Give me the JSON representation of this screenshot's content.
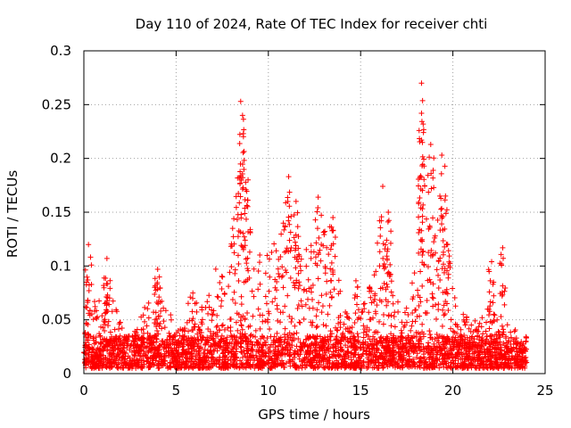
{
  "chart_data": {
    "type": "scatter",
    "title": "Day 110 of 2024, Rate Of TEC Index for receiver chti",
    "xlabel": "GPS time / hours",
    "ylabel": "ROTI / TECUs",
    "xlim": [
      0,
      25
    ],
    "ylim": [
      0,
      0.3
    ],
    "x_ticks": [
      0,
      5,
      10,
      15,
      20,
      25
    ],
    "y_ticks": [
      0,
      0.05,
      0.1,
      0.15,
      0.2,
      0.25,
      0.3
    ],
    "x_tick_labels": [
      "0",
      "5",
      "10",
      "15",
      "20",
      "25"
    ],
    "y_tick_labels": [
      "0",
      "0.05",
      "0.1",
      "0.15",
      "0.2",
      "0.25",
      "0.3"
    ],
    "grid": true,
    "marker": "+",
    "series_color": "#ff0000",
    "notable_peaks": [
      {
        "x": 0.25,
        "y": 0.12
      },
      {
        "x": 1.25,
        "y": 0.107
      },
      {
        "x": 4.0,
        "y": 0.097
      },
      {
        "x": 8.5,
        "y": 0.253
      },
      {
        "x": 8.6,
        "y": 0.24
      },
      {
        "x": 8.9,
        "y": 0.18
      },
      {
        "x": 11.1,
        "y": 0.183
      },
      {
        "x": 11.5,
        "y": 0.16
      },
      {
        "x": 12.7,
        "y": 0.164
      },
      {
        "x": 13.5,
        "y": 0.145
      },
      {
        "x": 16.2,
        "y": 0.174
      },
      {
        "x": 16.5,
        "y": 0.15
      },
      {
        "x": 18.3,
        "y": 0.27
      },
      {
        "x": 18.3,
        "y": 0.242
      },
      {
        "x": 18.3,
        "y": 0.217
      },
      {
        "x": 18.8,
        "y": 0.213
      },
      {
        "x": 19.4,
        "y": 0.203
      },
      {
        "x": 19.6,
        "y": 0.165
      },
      {
        "x": 22.1,
        "y": 0.104
      },
      {
        "x": 22.7,
        "y": 0.117
      }
    ],
    "activity_envelope": [
      {
        "x": 0,
        "y": 0.04
      },
      {
        "x": 0.3,
        "y": 0.09
      },
      {
        "x": 0.7,
        "y": 0.06
      },
      {
        "x": 1.2,
        "y": 0.09
      },
      {
        "x": 1.8,
        "y": 0.06
      },
      {
        "x": 2.4,
        "y": 0.03
      },
      {
        "x": 3.0,
        "y": 0.05
      },
      {
        "x": 3.5,
        "y": 0.07
      },
      {
        "x": 4.0,
        "y": 0.09
      },
      {
        "x": 4.6,
        "y": 0.06
      },
      {
        "x": 5.2,
        "y": 0.04
      },
      {
        "x": 5.8,
        "y": 0.08
      },
      {
        "x": 6.5,
        "y": 0.06
      },
      {
        "x": 7.2,
        "y": 0.1
      },
      {
        "x": 7.8,
        "y": 0.1
      },
      {
        "x": 8.5,
        "y": 0.2
      },
      {
        "x": 9.0,
        "y": 0.15
      },
      {
        "x": 9.5,
        "y": 0.11
      },
      {
        "x": 10.2,
        "y": 0.12
      },
      {
        "x": 11.0,
        "y": 0.16
      },
      {
        "x": 11.6,
        "y": 0.13
      },
      {
        "x": 12.2,
        "y": 0.12
      },
      {
        "x": 12.8,
        "y": 0.14
      },
      {
        "x": 13.5,
        "y": 0.12
      },
      {
        "x": 14.2,
        "y": 0.06
      },
      {
        "x": 14.8,
        "y": 0.09
      },
      {
        "x": 15.4,
        "y": 0.08
      },
      {
        "x": 16.2,
        "y": 0.15
      },
      {
        "x": 16.8,
        "y": 0.08
      },
      {
        "x": 17.4,
        "y": 0.06
      },
      {
        "x": 18.2,
        "y": 0.12
      },
      {
        "x": 18.8,
        "y": 0.17
      },
      {
        "x": 19.5,
        "y": 0.15
      },
      {
        "x": 20.2,
        "y": 0.06
      },
      {
        "x": 21.0,
        "y": 0.05
      },
      {
        "x": 21.8,
        "y": 0.06
      },
      {
        "x": 22.3,
        "y": 0.07
      },
      {
        "x": 22.8,
        "y": 0.05
      },
      {
        "x": 23.5,
        "y": 0.04
      },
      {
        "x": 24.0,
        "y": 0.03
      }
    ],
    "baseline_range": [
      0.005,
      0.035
    ],
    "data_extent_x": [
      0,
      24
    ]
  }
}
